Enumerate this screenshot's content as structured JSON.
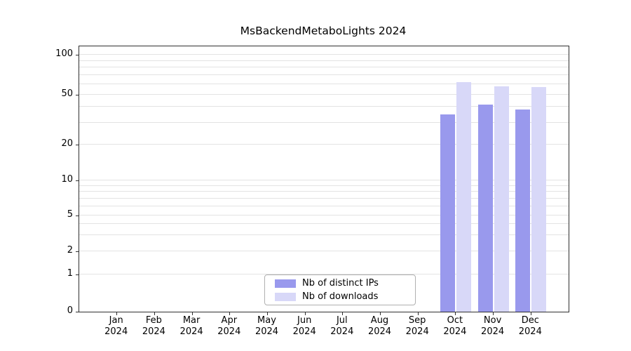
{
  "chart_data": {
    "type": "bar",
    "title": "MsBackendMetaboLights 2024",
    "categories": [
      "Jan\n2024",
      "Feb\n2024",
      "Mar\n2024",
      "Apr\n2024",
      "May\n2024",
      "Jun\n2024",
      "Jul\n2024",
      "Aug\n2024",
      "Sep\n2024",
      "Oct\n2024",
      "Nov\n2024",
      "Dec\n2024"
    ],
    "series": [
      {
        "name": "Nb of distinct IPs",
        "color": "#9999ed",
        "values": [
          0,
          0,
          0,
          0,
          0,
          0,
          0,
          0,
          0,
          35,
          42,
          38
        ]
      },
      {
        "name": "Nb of downloads",
        "color": "#d8d8f8",
        "values": [
          0,
          0,
          0,
          0,
          0,
          0,
          0,
          0,
          0,
          62,
          58,
          57
        ]
      }
    ],
    "xlabel": "",
    "ylabel": "",
    "yscale": "symlog",
    "ylim": [
      0,
      130
    ],
    "yticks_major": [
      0,
      1,
      2,
      5,
      10,
      20,
      50,
      100
    ],
    "yticks_minor": [
      1,
      2,
      3,
      4,
      5,
      6,
      7,
      8,
      9,
      10,
      20,
      30,
      40,
      50,
      60,
      70,
      80,
      90,
      100
    ],
    "grid": "horizontal",
    "legend_position": "bottom-center"
  }
}
